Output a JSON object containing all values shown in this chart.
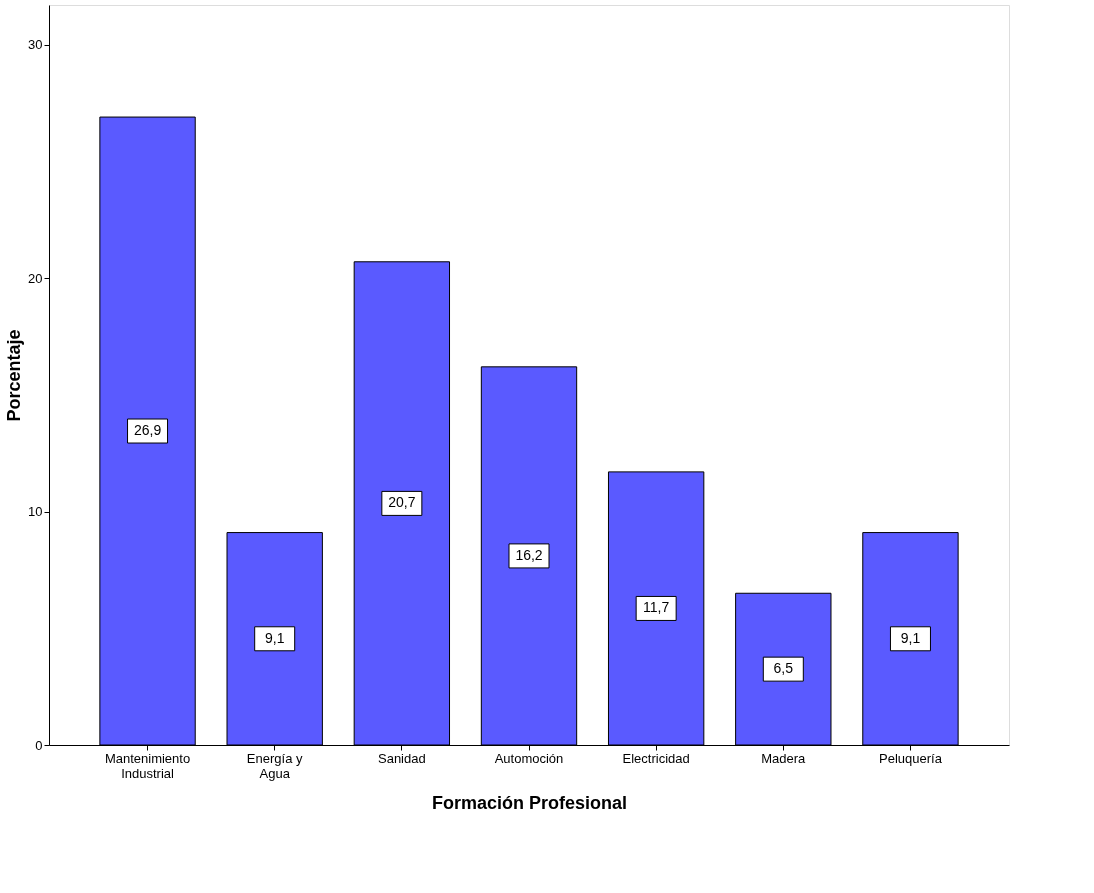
{
  "chart_data": {
    "type": "bar",
    "xlabel": "Formación Profesional",
    "ylabel": "Porcentaje",
    "categories": [
      "Mantenimiento\nIndustrial",
      "Energía y\nAgua",
      "Sanidad",
      "Automoción",
      "Electricidad",
      "Madera",
      "Peluquería"
    ],
    "values": [
      26.9,
      9.1,
      20.7,
      16.2,
      11.7,
      6.5,
      9.1
    ],
    "value_labels": [
      "26,9",
      "9,1",
      "20,7",
      "16,2",
      "11,7",
      "6,5",
      "9,1"
    ],
    "color": "#5a5aff",
    "ylim": [
      0,
      31.7
    ],
    "yticks": [
      0,
      10,
      20,
      30
    ],
    "grid": false
  }
}
